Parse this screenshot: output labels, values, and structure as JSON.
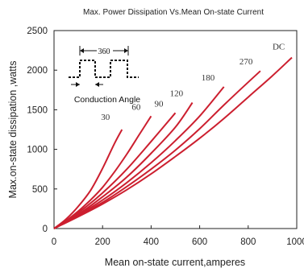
{
  "chart_data": {
    "type": "line",
    "title": "Max. Power Dissipation Vs.Mean On-state Current",
    "xlabel": "Mean on-state current,amperes",
    "ylabel": "Max.on-state dissipation ,watts",
    "xlim": [
      0,
      1000
    ],
    "ylim": [
      0,
      2500
    ],
    "xticks": [
      0,
      200,
      400,
      600,
      800,
      1000
    ],
    "yticks": [
      0,
      500,
      1000,
      1500,
      2000,
      2500
    ],
    "grid": false,
    "line_color": "#cc1f2f",
    "series": [
      {
        "name": "30",
        "x": [
          0,
          50,
          100,
          150,
          200,
          250,
          280
        ],
        "y": [
          0,
          120,
          280,
          480,
          760,
          1080,
          1250
        ]
      },
      {
        "name": "60",
        "x": [
          0,
          50,
          100,
          150,
          200,
          250,
          300,
          350,
          400
        ],
        "y": [
          0,
          100,
          220,
          360,
          520,
          720,
          940,
          1180,
          1420
        ]
      },
      {
        "name": "90",
        "x": [
          0,
          100,
          200,
          300,
          400,
          500
        ],
        "y": [
          0,
          200,
          450,
          750,
          1100,
          1460
        ]
      },
      {
        "name": "120",
        "x": [
          0,
          100,
          200,
          300,
          400,
          500,
          570
        ],
        "y": [
          0,
          180,
          400,
          650,
          950,
          1280,
          1590
        ]
      },
      {
        "name": "180",
        "x": [
          0,
          100,
          200,
          300,
          400,
          500,
          600,
          700
        ],
        "y": [
          0,
          170,
          360,
          580,
          830,
          1110,
          1420,
          1790
        ]
      },
      {
        "name": "270",
        "x": [
          0,
          100,
          200,
          300,
          400,
          500,
          600,
          700,
          850
        ],
        "y": [
          0,
          160,
          330,
          530,
          750,
          990,
          1260,
          1560,
          1990
        ]
      },
      {
        "name": "DC",
        "x": [
          0,
          100,
          200,
          300,
          400,
          500,
          600,
          700,
          800,
          900,
          980
        ],
        "y": [
          0,
          150,
          310,
          490,
          690,
          910,
          1140,
          1390,
          1660,
          1930,
          2160
        ]
      }
    ],
    "annotations": {
      "inset_period": "360",
      "inset_caption": "Conduction Angle"
    }
  }
}
